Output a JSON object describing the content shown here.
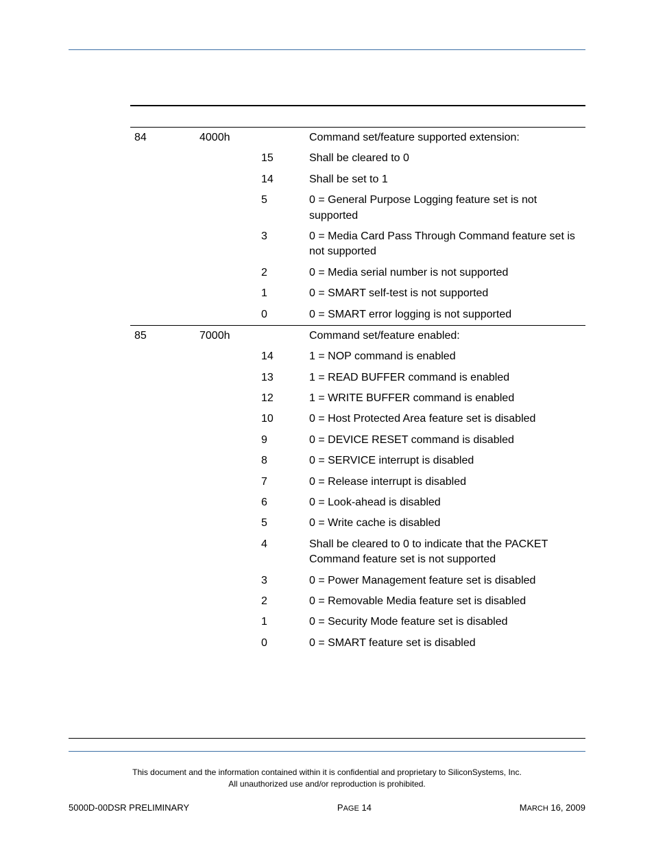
{
  "colors": {
    "blue_rule": "#3a6ea5",
    "black_rule": "#000000",
    "background": "#ffffff",
    "text": "#000000"
  },
  "typography": {
    "body_fontsize": 16,
    "footer_fontsize": 13,
    "confidential_fontsize": 12,
    "font_family": "Arial"
  },
  "table": {
    "sections": [
      {
        "word": "84",
        "value": "4000h",
        "header_desc": "Command set/feature supported extension:",
        "rows": [
          {
            "bit": "15",
            "desc": "Shall be cleared to 0"
          },
          {
            "bit": "14",
            "desc": "Shall be set to 1"
          },
          {
            "bit": "5",
            "desc": "0 = General Purpose Logging feature set is not supported"
          },
          {
            "bit": "3",
            "desc": "0 = Media Card Pass Through Command feature set is not supported"
          },
          {
            "bit": "2",
            "desc": "0 = Media serial number is not supported"
          },
          {
            "bit": "1",
            "desc": "0 = SMART self-test is not supported"
          },
          {
            "bit": "0",
            "desc": "0 = SMART error logging is not supported"
          }
        ]
      },
      {
        "word": "85",
        "value": "7000h",
        "header_desc": "Command set/feature enabled:",
        "rows": [
          {
            "bit": "14",
            "desc": "1 = NOP command is enabled"
          },
          {
            "bit": "13",
            "desc": "1 = READ BUFFER command is enabled"
          },
          {
            "bit": "12",
            "desc": "1 = WRITE BUFFER command is enabled"
          },
          {
            "bit": "10",
            "desc": "0 = Host Protected Area feature set is disabled"
          },
          {
            "bit": "9",
            "desc": "0 = DEVICE RESET command is disabled"
          },
          {
            "bit": "8",
            "desc": "0 = SERVICE interrupt is disabled"
          },
          {
            "bit": "7",
            "desc": "0 = Release interrupt is disabled"
          },
          {
            "bit": "6",
            "desc": "0 = Look-ahead is disabled"
          },
          {
            "bit": "5",
            "desc": "0 = Write cache is disabled"
          },
          {
            "bit": "4",
            "desc": "Shall be cleared to 0 to indicate that the PACKET Command feature set is not supported"
          },
          {
            "bit": "3",
            "desc": "0 = Power Management feature set is disabled"
          },
          {
            "bit": "2",
            "desc": "0 = Removable Media feature set is disabled"
          },
          {
            "bit": "1",
            "desc": "0 = Security Mode feature set is disabled"
          },
          {
            "bit": "0",
            "desc": "0 = SMART feature set is disabled"
          }
        ]
      }
    ]
  },
  "footer": {
    "confidential_line1": "This document and the information contained within it is confidential and proprietary to SiliconSystems, Inc.",
    "confidential_line2": "All unauthorized use and/or reproduction is prohibited.",
    "left": "5000D-00DSR PRELIMINARY",
    "center_prefix": "P",
    "center_word": "AGE",
    "center_num": " 14",
    "right_prefix": "M",
    "right_word": "ARCH",
    "right_rest": " 16, 2009"
  }
}
